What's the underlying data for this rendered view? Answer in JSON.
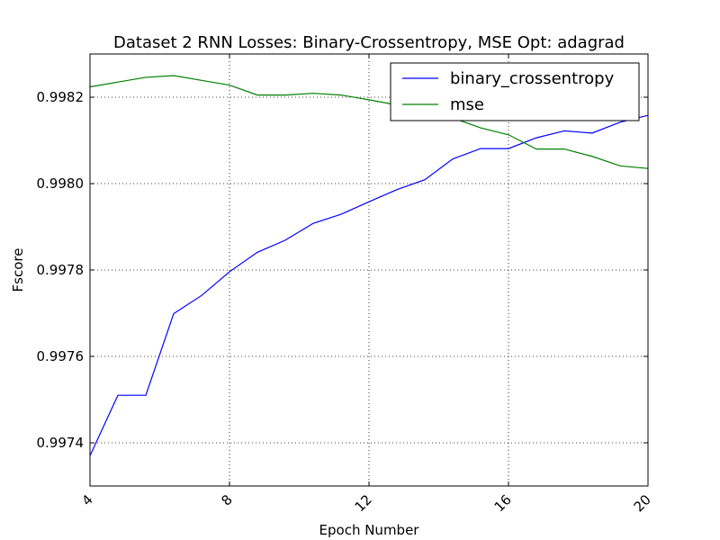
{
  "chart_data": {
    "type": "line",
    "title": "Dataset 2 RNN  Losses: Binary-Crossentropy, MSE  Opt: adagrad",
    "xlabel": "Epoch Number",
    "ylabel": "Fscore",
    "xlim": [
      4,
      20
    ],
    "ylim": [
      0.9973,
      0.9983
    ],
    "xticks": [
      4,
      8,
      12,
      16,
      20
    ],
    "xtick_labels": [
      "4",
      "8",
      "12",
      "16",
      "20"
    ],
    "yticks": [
      0.9974,
      0.9976,
      0.9978,
      0.998,
      0.9982
    ],
    "ytick_labels": [
      "0.9974",
      "0.9976",
      "0.9978",
      "0.9980",
      "0.9982"
    ],
    "grid": true,
    "legend_position": "top-right",
    "x": [
      4,
      4.8,
      5.6,
      6.4,
      7.2,
      8,
      8.8,
      9.6,
      10.4,
      11.2,
      12,
      12.8,
      13.6,
      14.4,
      15.2,
      16,
      16.8,
      17.6,
      18.4,
      19.2,
      20
    ],
    "series": [
      {
        "name": "binary_crossentropy",
        "color": "#0000ff",
        "values": [
          0.99737,
          0.99751,
          0.99751,
          0.997699,
          0.997741,
          0.997796,
          0.997841,
          0.997869,
          0.997908,
          0.997929,
          0.997958,
          0.997986,
          0.998009,
          0.998057,
          0.998081,
          0.998081,
          0.998106,
          0.998122,
          0.998117,
          0.998142,
          0.998158
        ]
      },
      {
        "name": "mse",
        "color": "#008000",
        "values": [
          0.998224,
          0.998235,
          0.998246,
          0.99825,
          0.998239,
          0.998228,
          0.998205,
          0.998205,
          0.998209,
          0.998205,
          0.998194,
          0.998182,
          0.998159,
          0.998152,
          0.998129,
          0.998113,
          0.99808,
          0.99808,
          0.998063,
          0.998041,
          0.998035
        ]
      }
    ]
  }
}
